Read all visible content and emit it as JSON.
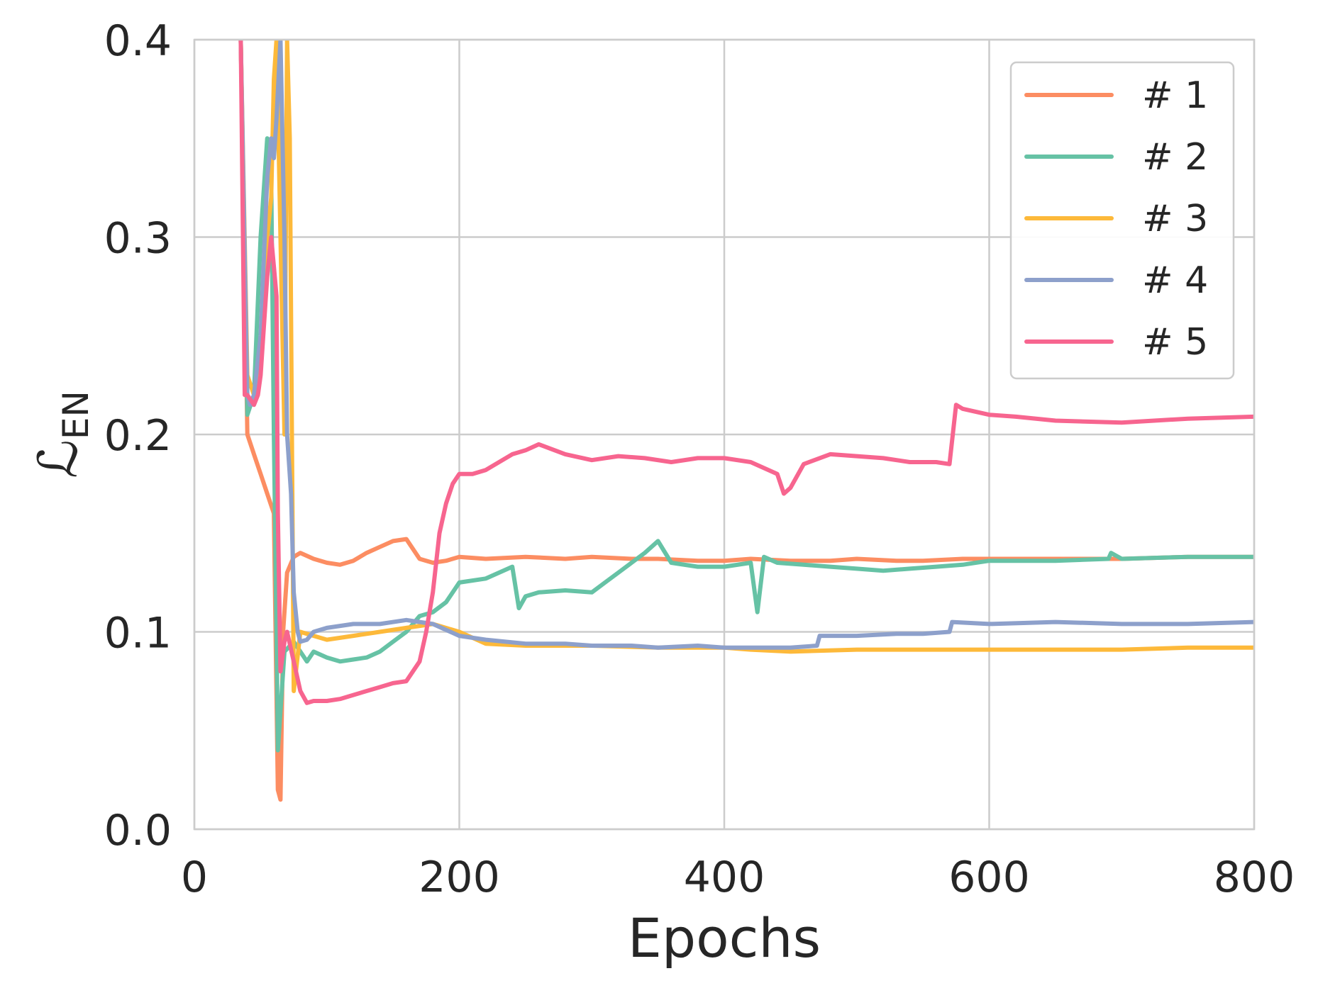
{
  "chart_data": {
    "type": "line",
    "title": "",
    "xlabel": "Epochs",
    "ylabel": {
      "main": "ℒ",
      "sub": "EN"
    },
    "xlim": [
      0,
      800
    ],
    "ylim": [
      0,
      0.4
    ],
    "xticks": [
      "0",
      "200",
      "400",
      "600",
      "800"
    ],
    "yticks": [
      "0.0",
      "0.1",
      "0.2",
      "0.3",
      "0.4"
    ],
    "grid": true,
    "legend_position": "top-right",
    "series": [
      {
        "name": "# 1",
        "color": "#fc8d62",
        "x": [
          35,
          40,
          45,
          50,
          55,
          60,
          63,
          65,
          67,
          70,
          75,
          80,
          90,
          100,
          110,
          120,
          130,
          140,
          150,
          160,
          170,
          180,
          190,
          200,
          220,
          250,
          280,
          300,
          330,
          350,
          380,
          400,
          420,
          450,
          480,
          500,
          530,
          550,
          580,
          600,
          650,
          700,
          750,
          800
        ],
        "y": [
          0.4,
          0.2,
          0.19,
          0.18,
          0.17,
          0.16,
          0.02,
          0.015,
          0.1,
          0.13,
          0.138,
          0.14,
          0.137,
          0.135,
          0.134,
          0.136,
          0.14,
          0.143,
          0.146,
          0.147,
          0.137,
          0.135,
          0.136,
          0.138,
          0.137,
          0.138,
          0.137,
          0.138,
          0.137,
          0.137,
          0.136,
          0.136,
          0.137,
          0.136,
          0.136,
          0.137,
          0.136,
          0.136,
          0.137,
          0.137,
          0.137,
          0.137,
          0.138,
          0.138
        ]
      },
      {
        "name": "# 2",
        "color": "#66c2a5",
        "x": [
          35,
          40,
          45,
          50,
          55,
          58,
          60,
          62,
          63,
          65,
          68,
          75,
          85,
          90,
          100,
          110,
          120,
          130,
          140,
          150,
          160,
          170,
          180,
          190,
          200,
          220,
          240,
          245,
          250,
          260,
          280,
          300,
          310,
          320,
          330,
          340,
          350,
          360,
          380,
          400,
          420,
          425,
          430,
          440,
          460,
          480,
          500,
          520,
          540,
          560,
          580,
          600,
          650,
          690,
          692,
          700,
          750,
          800
        ],
        "y": [
          0.4,
          0.21,
          0.22,
          0.3,
          0.35,
          0.33,
          0.2,
          0.1,
          0.04,
          0.06,
          0.09,
          0.095,
          0.085,
          0.09,
          0.087,
          0.085,
          0.086,
          0.087,
          0.09,
          0.095,
          0.1,
          0.108,
          0.11,
          0.115,
          0.125,
          0.127,
          0.133,
          0.112,
          0.118,
          0.12,
          0.121,
          0.12,
          0.125,
          0.13,
          0.135,
          0.14,
          0.146,
          0.135,
          0.133,
          0.133,
          0.135,
          0.11,
          0.138,
          0.135,
          0.134,
          0.133,
          0.132,
          0.131,
          0.132,
          0.133,
          0.134,
          0.136,
          0.136,
          0.137,
          0.14,
          0.137,
          0.138,
          0.138
        ]
      },
      {
        "name": "# 3",
        "color": "#fdb93a",
        "x": [
          35,
          40,
          45,
          50,
          55,
          58,
          60,
          62,
          65,
          68,
          70,
          72,
          75,
          80,
          90,
          100,
          120,
          140,
          160,
          180,
          200,
          220,
          250,
          280,
          300,
          350,
          400,
          420,
          450,
          500,
          550,
          600,
          650,
          700,
          750,
          800
        ],
        "y": [
          0.4,
          0.23,
          0.22,
          0.24,
          0.3,
          0.32,
          0.38,
          0.4,
          0.3,
          0.2,
          0.4,
          0.35,
          0.07,
          0.1,
          0.098,
          0.096,
          0.098,
          0.1,
          0.102,
          0.104,
          0.1,
          0.094,
          0.093,
          0.093,
          0.093,
          0.092,
          0.092,
          0.091,
          0.09,
          0.091,
          0.091,
          0.091,
          0.091,
          0.091,
          0.092,
          0.092
        ]
      },
      {
        "name": "# 4",
        "color": "#8da0cb",
        "x": [
          35,
          40,
          42,
          45,
          50,
          55,
          58,
          60,
          62,
          65,
          68,
          70,
          73,
          75,
          78,
          80,
          85,
          90,
          100,
          120,
          140,
          160,
          180,
          200,
          220,
          250,
          280,
          300,
          330,
          350,
          380,
          400,
          420,
          450,
          470,
          472,
          500,
          530,
          550,
          570,
          572,
          600,
          650,
          700,
          750,
          800
        ],
        "y": [
          0.4,
          0.22,
          0.215,
          0.22,
          0.25,
          0.33,
          0.35,
          0.34,
          0.36,
          0.4,
          0.3,
          0.2,
          0.17,
          0.12,
          0.1,
          0.095,
          0.096,
          0.1,
          0.102,
          0.104,
          0.104,
          0.106,
          0.104,
          0.098,
          0.096,
          0.094,
          0.094,
          0.093,
          0.093,
          0.092,
          0.093,
          0.092,
          0.092,
          0.092,
          0.093,
          0.098,
          0.098,
          0.099,
          0.099,
          0.1,
          0.105,
          0.104,
          0.105,
          0.104,
          0.104,
          0.105
        ]
      },
      {
        "name": "# 5",
        "color": "#f7658f",
        "x": [
          35,
          38,
          40,
          45,
          48,
          50,
          55,
          58,
          60,
          62,
          63,
          65,
          68,
          70,
          75,
          80,
          85,
          90,
          100,
          110,
          120,
          130,
          140,
          150,
          160,
          170,
          175,
          180,
          185,
          190,
          195,
          200,
          210,
          220,
          240,
          250,
          260,
          280,
          300,
          320,
          340,
          360,
          380,
          400,
          420,
          440,
          445,
          450,
          460,
          480,
          500,
          520,
          540,
          560,
          570,
          575,
          580,
          600,
          620,
          650,
          700,
          750,
          800
        ],
        "y": [
          0.4,
          0.22,
          0.22,
          0.215,
          0.22,
          0.23,
          0.28,
          0.3,
          0.285,
          0.27,
          0.16,
          0.08,
          0.095,
          0.1,
          0.085,
          0.07,
          0.064,
          0.065,
          0.065,
          0.066,
          0.068,
          0.07,
          0.072,
          0.074,
          0.075,
          0.085,
          0.1,
          0.12,
          0.15,
          0.165,
          0.175,
          0.18,
          0.18,
          0.182,
          0.19,
          0.192,
          0.195,
          0.19,
          0.187,
          0.189,
          0.188,
          0.186,
          0.188,
          0.188,
          0.186,
          0.18,
          0.17,
          0.173,
          0.185,
          0.19,
          0.189,
          0.188,
          0.186,
          0.186,
          0.185,
          0.215,
          0.213,
          0.21,
          0.209,
          0.207,
          0.206,
          0.208,
          0.209
        ]
      }
    ]
  }
}
